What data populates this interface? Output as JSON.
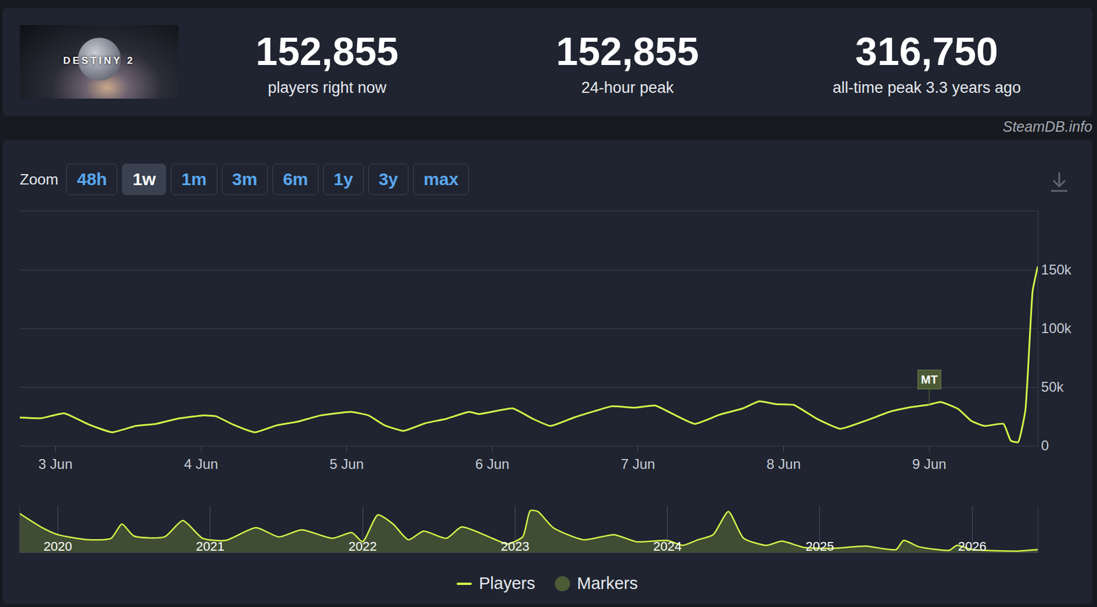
{
  "header": {
    "logo_text": "DESTINY 2",
    "stats": [
      {
        "value": "152,855",
        "label": "players right now"
      },
      {
        "value": "152,855",
        "label": "24-hour peak"
      },
      {
        "value": "316,750",
        "label": "all-time peak 3.3 years ago"
      }
    ],
    "source": "SteamDB.info"
  },
  "zoom": {
    "label": "Zoom",
    "buttons": [
      "48h",
      "1w",
      "1m",
      "3m",
      "6m",
      "1y",
      "3y",
      "max"
    ],
    "active": "1w"
  },
  "chart_data": [
    {
      "type": "line",
      "x": [
        2.755,
        2.9,
        3.06,
        3.23,
        3.39,
        3.55,
        3.69,
        3.83,
        4.01,
        4.1,
        4.22,
        4.37,
        4.52,
        4.66,
        4.82,
        5.03,
        5.15,
        5.26,
        5.39,
        5.54,
        5.68,
        5.84,
        5.91,
        6.14,
        6.28,
        6.4,
        6.56,
        6.7,
        6.82,
        6.98,
        7.12,
        7.25,
        7.39,
        7.56,
        7.72,
        7.83,
        7.95,
        8.07,
        8.23,
        8.39,
        8.57,
        8.74,
        8.88,
        8.99,
        9.08,
        9.2,
        9.29,
        9.38,
        9.51,
        9.56,
        9.61,
        9.66,
        9.71,
        9.745
      ],
      "series": [
        {
          "name": "Players",
          "color": "#d4f548",
          "values": [
            24000,
            23400,
            27600,
            18000,
            11400,
            16800,
            18600,
            22800,
            25800,
            25200,
            18000,
            11400,
            17400,
            20400,
            25800,
            28800,
            25800,
            17400,
            12600,
            19200,
            22800,
            28800,
            27000,
            31800,
            22800,
            16800,
            24000,
            29400,
            33600,
            32400,
            34200,
            26400,
            18600,
            26400,
            31800,
            37800,
            35400,
            34800,
            22800,
            14400,
            21600,
            29400,
            33000,
            34800,
            37200,
            31200,
            21000,
            16800,
            18600,
            4200,
            3000,
            30000,
            132000,
            152855
          ]
        }
      ],
      "xlim": [
        2.755,
        9.745
      ],
      "xticks": [
        {
          "value": 3,
          "label": "3 Jun"
        },
        {
          "value": 4,
          "label": "4 Jun"
        },
        {
          "value": 5,
          "label": "5 Jun"
        },
        {
          "value": 6,
          "label": "6 Jun"
        },
        {
          "value": 7,
          "label": "7 Jun"
        },
        {
          "value": 8,
          "label": "8 Jun"
        },
        {
          "value": 9,
          "label": "9 Jun"
        }
      ],
      "ylim": [
        0,
        200000
      ],
      "yticks": [
        0,
        {
          "value": 50000,
          "label": "50k"
        },
        {
          "value": 100000,
          "label": "100k"
        },
        {
          "value": 150000,
          "label": "150k"
        }
      ],
      "grid": true,
      "legend": "bottom",
      "markers": {
        "name": "Markers",
        "color": "#4b5b35",
        "items": [
          {
            "text": "MT",
            "x": 9,
            "y": 34800
          }
        ]
      }
    },
    {
      "type": "area",
      "x": [
        2019.75,
        2019.9,
        2020.0,
        2020.2,
        2020.35,
        2020.42,
        2020.5,
        2020.7,
        2020.82,
        2020.95,
        2021.1,
        2021.3,
        2021.45,
        2021.6,
        2021.8,
        2021.93,
        2022.0,
        2022.1,
        2022.2,
        2022.3,
        2022.4,
        2022.55,
        2022.65,
        2022.85,
        2022.95,
        2023.05,
        2023.1,
        2023.15,
        2023.25,
        2023.45,
        2023.65,
        2023.8,
        2024.0,
        2024.1,
        2024.2,
        2024.3,
        2024.4,
        2024.5,
        2024.65,
        2024.75,
        2024.9,
        2025.1,
        2025.3,
        2025.5,
        2025.55,
        2025.65,
        2025.85,
        2025.9,
        2026.0,
        2026.3,
        2026.43
      ],
      "series": [
        {
          "color": "#d4f548",
          "values": [
            285000,
            180000,
            130000,
            93000,
            104000,
            208000,
            120000,
            114000,
            234000,
            104000,
            88000,
            182000,
            114000,
            166000,
            104000,
            145000,
            78000,
            275000,
            208000,
            93000,
            156000,
            104000,
            187000,
            104000,
            62000,
            114000,
            306000,
            300000,
            182000,
            93000,
            130000,
            78000,
            88000,
            52000,
            93000,
            130000,
            300000,
            104000,
            52000,
            83000,
            36000,
            31000,
            47000,
            21000,
            88000,
            42000,
            16000,
            52000,
            21000,
            10000,
            21000
          ]
        }
      ],
      "xlim": [
        2019.75,
        2026.43
      ],
      "xticks": [
        2020,
        2021,
        2022,
        2023,
        2024,
        2025,
        2026
      ],
      "ylim": [
        0,
        340000
      ],
      "grid": true,
      "tick_labels": "x"
    }
  ]
}
